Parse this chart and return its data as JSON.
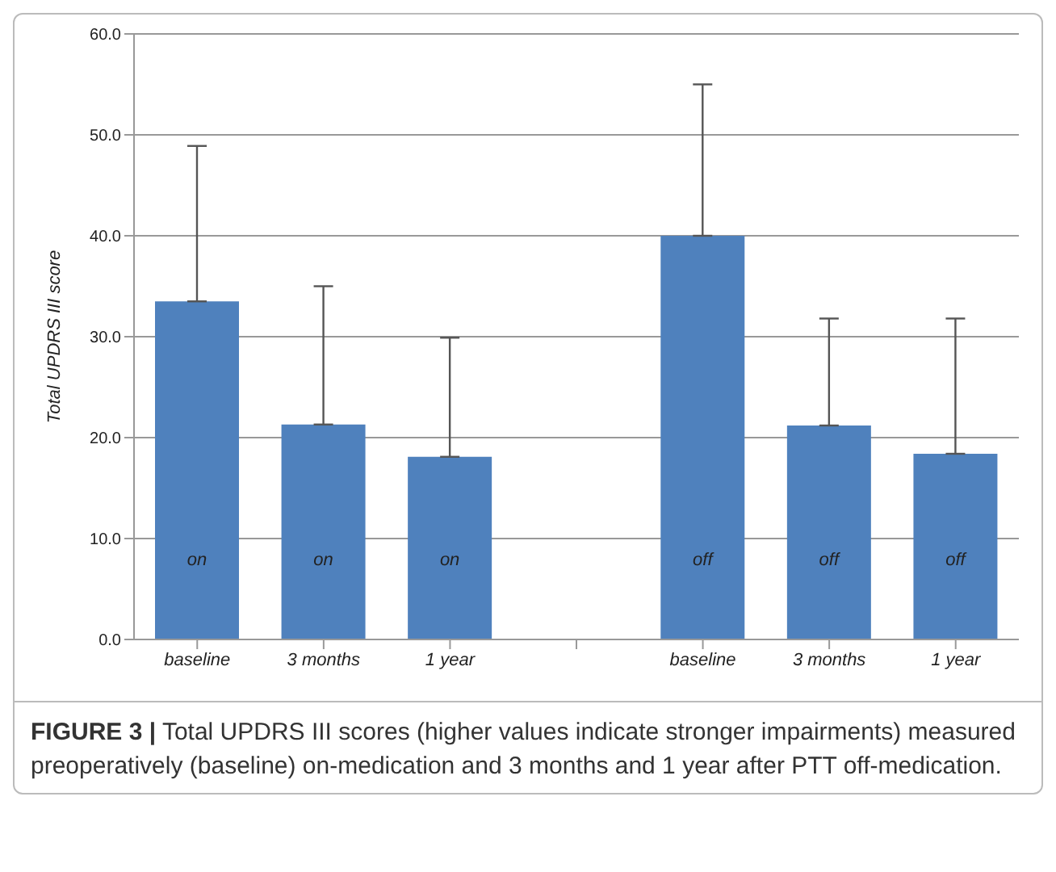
{
  "chart_data": {
    "type": "bar",
    "ylabel": "Total UPDRS III score",
    "categories": [
      "baseline",
      "3 months",
      "1 year",
      null,
      "baseline",
      "3 months",
      "1 year"
    ],
    "values": [
      33.5,
      21.3,
      18.1,
      null,
      40.0,
      21.2,
      18.4
    ],
    "errors": [
      [
        33.5,
        48.9
      ],
      [
        21.3,
        35.0
      ],
      [
        18.1,
        29.9
      ],
      null,
      [
        40.0,
        55.0
      ],
      [
        21.2,
        31.8
      ],
      [
        18.4,
        31.8
      ]
    ],
    "value_labels": [
      "on",
      "on",
      "on",
      null,
      "off",
      "off",
      "off"
    ],
    "color": "#4f81bd",
    "ylim": [
      0,
      60
    ],
    "yticks": [
      {
        "value": 0,
        "label": "0.0"
      },
      {
        "value": 10,
        "label": "10.0"
      },
      {
        "value": 20,
        "label": "20.0"
      },
      {
        "value": 30,
        "label": "30.0"
      },
      {
        "value": 40,
        "label": "40.0"
      },
      {
        "value": 50,
        "label": "50.0"
      },
      {
        "value": 60,
        "label": "60.0"
      }
    ],
    "grid": "y",
    "annotations": [
      "FIGURE 3 | Total UPDRS III scores (higher values indicate stronger impairments) measured preoperatively (baseline) on-medication and 3 months and 1 year after PTT off-medication."
    ]
  }
}
